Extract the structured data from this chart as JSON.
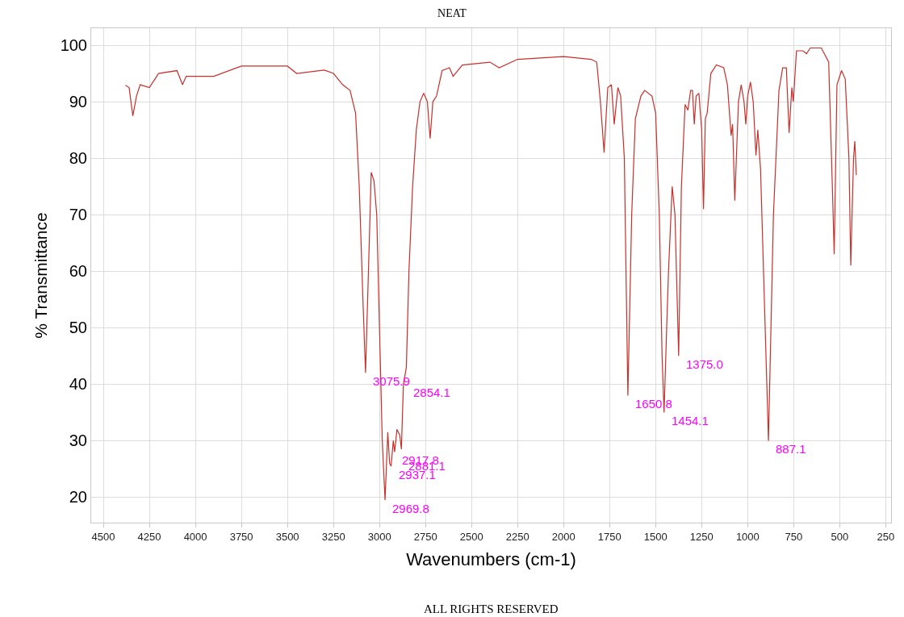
{
  "chart_data": {
    "type": "line",
    "title": "NEAT",
    "xlabel": "Wavenumbers (cm-1)",
    "ylabel": "% Transmittance",
    "xlim": [
      4566,
      221
    ],
    "ylim": [
      15.5,
      103
    ],
    "xticks": [
      4500,
      4250,
      4000,
      3750,
      3500,
      3250,
      3000,
      2750,
      2500,
      2250,
      2000,
      1750,
      1500,
      1250,
      1000,
      750,
      500,
      250
    ],
    "yticks": [
      20,
      30,
      40,
      50,
      60,
      70,
      80,
      90,
      100
    ],
    "grid": true,
    "marker": "none",
    "line_style": "solid",
    "x": [
      4380,
      4360,
      4340,
      4320,
      4300,
      4250,
      4200,
      4100,
      4070,
      4050,
      3900,
      3750,
      3500,
      3450,
      3300,
      3250,
      3200,
      3160,
      3130,
      3110,
      3090,
      3075.9,
      3060,
      3045,
      3030,
      3015,
      3000,
      2985,
      2969.8,
      2955,
      2945,
      2937.1,
      2925,
      2917.8,
      2905,
      2890,
      2881.1,
      2870,
      2854.1,
      2840,
      2820,
      2800,
      2780,
      2760,
      2740,
      2725,
      2710,
      2690,
      2660,
      2620,
      2600,
      2550,
      2400,
      2350,
      2250,
      2000,
      1850,
      1820,
      1800,
      1780,
      1760,
      1740,
      1725,
      1705,
      1690,
      1670,
      1650.8,
      1630,
      1610,
      1580,
      1560,
      1520,
      1500,
      1480,
      1465,
      1454.1,
      1440,
      1430,
      1410,
      1395,
      1375.0,
      1360,
      1340,
      1325,
      1310,
      1300,
      1290,
      1280,
      1265,
      1250,
      1240,
      1230,
      1220,
      1200,
      1170,
      1130,
      1110,
      1090,
      1082,
      1070,
      1050,
      1035,
      1020,
      1010,
      1000,
      985,
      970,
      955,
      945,
      930,
      887.1,
      860,
      830,
      810,
      790,
      775,
      760,
      752,
      735,
      700,
      680,
      660,
      600,
      560,
      540,
      530,
      515,
      490,
      470,
      450,
      440,
      425,
      418,
      410
    ],
    "series": [
      {
        "color": "#c8302c",
        "values": [
          92.9,
          92.5,
          87.5,
          91,
          93,
          92.5,
          95,
          95.5,
          93,
          94.5,
          94.5,
          96.3,
          96.3,
          95,
          95.6,
          95,
          93,
          92,
          88,
          75,
          55,
          42,
          60,
          77.5,
          76,
          70,
          50,
          30,
          19.5,
          31.5,
          26,
          25.5,
          30,
          28,
          32,
          31,
          28.5,
          40,
          43,
          60,
          75,
          85,
          90,
          91.5,
          90,
          83.5,
          90,
          91,
          95.5,
          96,
          94.5,
          96.5,
          97,
          96,
          97.5,
          98,
          97.5,
          97,
          90,
          81,
          92.5,
          93,
          86,
          92.5,
          91,
          80,
          38,
          70,
          87,
          91,
          92,
          91,
          88,
          70,
          45,
          35,
          50,
          60,
          75,
          70,
          45,
          75,
          89.5,
          88.5,
          92,
          92,
          86,
          91,
          91.5,
          85,
          71,
          87,
          88,
          95,
          96.5,
          96,
          93,
          84,
          86,
          72.5,
          90,
          93,
          90,
          86,
          91,
          93.5,
          90,
          80.5,
          85,
          78,
          30,
          70,
          92,
          96,
          96,
          84.5,
          92.5,
          90,
          99,
          99,
          98.5,
          99.5,
          99.5,
          97,
          75,
          63,
          93,
          95.5,
          94,
          80,
          61,
          80,
          83,
          77
        ]
      }
    ],
    "annotations": [
      {
        "text": "3075.9",
        "x": 3075.9,
        "y": 42
      },
      {
        "text": "2854.1",
        "x": 2854.1,
        "y": 40
      },
      {
        "text": "2917.8",
        "x": 2917.8,
        "y": 28
      },
      {
        "text": "2881.1",
        "x": 2881.1,
        "y": 28.5
      },
      {
        "text": "2937.1",
        "x": 2937.1,
        "y": 25.5
      },
      {
        "text": "2969.8",
        "x": 2969.8,
        "y": 19.5
      },
      {
        "text": "1650.8",
        "x": 1650.8,
        "y": 38
      },
      {
        "text": "1454.1",
        "x": 1454.1,
        "y": 35
      },
      {
        "text": "1375.0",
        "x": 1375.0,
        "y": 45
      },
      {
        "text": "887.1",
        "x": 887.1,
        "y": 30
      },
      "ALL RIGHTS RESERVED"
    ]
  }
}
